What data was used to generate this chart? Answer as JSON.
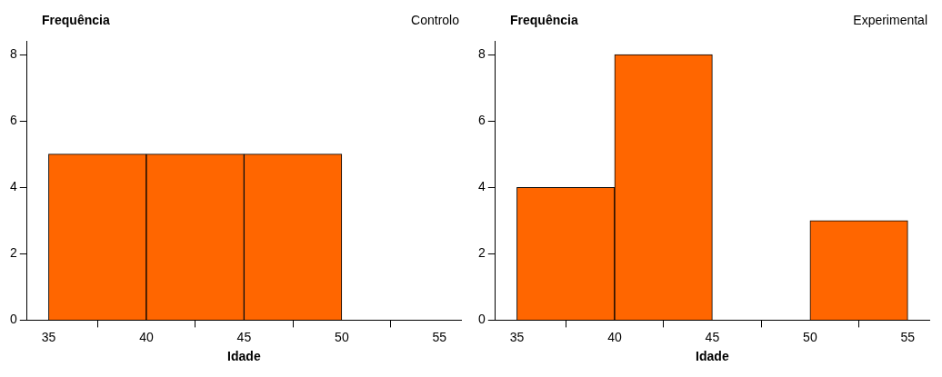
{
  "chart_data": [
    {
      "type": "histogram",
      "title": "Controlo",
      "ylabel": "Frequência",
      "xlabel": "Idade",
      "bins": [
        35,
        40,
        45,
        50,
        55
      ],
      "values": [
        5,
        5,
        5,
        0
      ],
      "color": "#ff6600",
      "xlim": [
        33.9,
        56.1
      ],
      "ylim": [
        0,
        8.4
      ],
      "xticks": [
        35,
        40,
        45,
        50,
        55
      ],
      "yticks": [
        0,
        2,
        4,
        6,
        8
      ],
      "grid": false
    },
    {
      "type": "histogram",
      "title": "Experimental",
      "ylabel": "Frequência",
      "xlabel": "Idade",
      "bins": [
        35,
        40,
        45,
        50,
        55
      ],
      "values": [
        4,
        8,
        0,
        3
      ],
      "color": "#ff6600",
      "xlim": [
        33.9,
        56.1
      ],
      "ylim": [
        0,
        8.4
      ],
      "xticks": [
        35,
        40,
        45,
        50,
        55
      ],
      "yticks": [
        0,
        2,
        4,
        6,
        8
      ],
      "grid": false
    }
  ]
}
